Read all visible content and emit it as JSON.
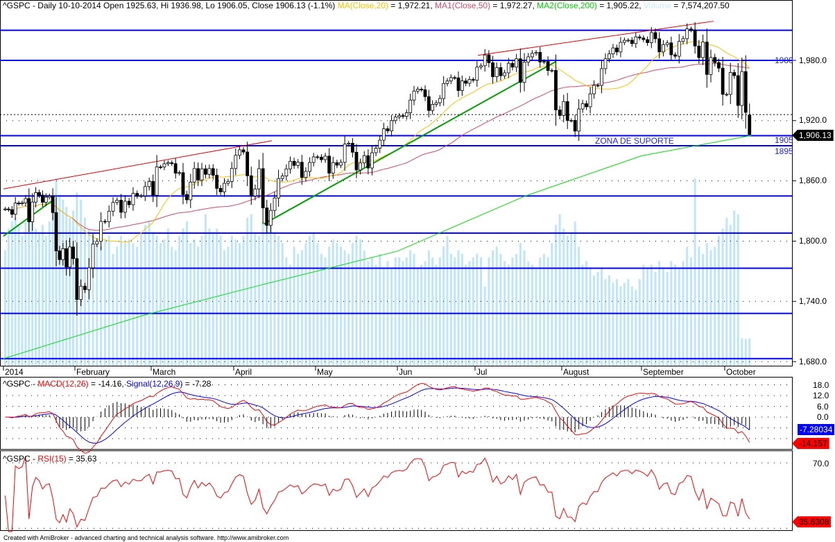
{
  "header": {
    "main_prefix": "^GSPC - Daily 10-10-2014 Open 1925.63, Hi 1936.98, Lo 1906.05, Close 1906.13 (-1.1%)",
    "ma20_label": "MA(Close,20)",
    "ma20_value": " = 1,972.21,",
    "ma50_label": "MA1(Close,50)",
    "ma50_value": " = 1,972.27,",
    "ma200_label": "MA2(Close,200)",
    "ma200_value": " = 1,905.22,",
    "volume_label": "Volume",
    "volume_value": " = 7,574,207.50",
    "macd_prefix": "^GSPC - ",
    "macd_label": "MACD(12,26)",
    "macd_value": " = -14.16, ",
    "signal_label": "Signal(12,26,9)",
    "signal_value": " = -7.28",
    "rsi_prefix": "^GSPC - ",
    "rsi_label": "RSI(15)",
    "rsi_value": " = 35.63"
  },
  "footer": "Created with AmiBroker - advanced charting and technical analysis software. http://www.amibroker.com",
  "annotations": {
    "zone_text": "ZONA DE SUPORTE",
    "l1980": "1980",
    "l1905": "1905",
    "l1895": "1895"
  },
  "axis": {
    "price_ticks": [
      "1,980.0",
      "1,920.0",
      "1,860.0",
      "1,800.0",
      "1,740.0",
      "1,680.0"
    ],
    "last_price": "1,906.13",
    "macd_ticks": [
      "18.0",
      "12.0",
      "6.0",
      "0.0"
    ],
    "signal_badge": "-7.28034",
    "macd_badge": "-14.157",
    "rsi_ticks": [
      "70.0"
    ],
    "rsi_badge": "35.6308"
  },
  "colors": {
    "ma20": "#ffc000",
    "ma50": "#d04a6a",
    "ma200": "#00e000",
    "volume": "#bfe6f8",
    "level": "#0000ff",
    "trend_red": "#e00000",
    "trend_green": "#00a000",
    "macd": "#ff0000",
    "signal": "#0000ff",
    "rsi": "#ff0000"
  },
  "chart_data": {
    "type": "candlestick",
    "symbol": "^GSPC",
    "interval": "Daily",
    "last_bar": {
      "date": "10-10-2014",
      "open": 1925.63,
      "high": 1936.98,
      "low": 1906.05,
      "close": 1906.13
    },
    "ylim": [
      1670,
      2030
    ],
    "months": [
      {
        "label": "2014",
        "closes": [
          1831.98,
          1831.37,
          1826.77,
          1837.88,
          1837.49,
          1838.13,
          1842.37,
          1819.2,
          1838.88,
          1848.38,
          1845.89,
          1838.7,
          1843.8,
          1844.86,
          1828.46,
          1790.29,
          1781.56,
          1792.5,
          1774.2,
          1794.19,
          1782.59
        ],
        "volumes": [
          32,
          38,
          40,
          41,
          39,
          36,
          40,
          44,
          42,
          38,
          37,
          39,
          36,
          40,
          45,
          52,
          47,
          46,
          44,
          41,
          43
        ]
      },
      {
        "label": "February",
        "closes": [
          1741.89,
          1755.2,
          1751.64,
          1773.43,
          1797.02,
          1799.84,
          1819.75,
          1819.26,
          1829.83,
          1838.63,
          1840.76,
          1828.75,
          1839.78,
          1836.25,
          1847.61,
          1845.12,
          1845.16,
          1854.29,
          1859.45
        ],
        "volumes": [
          48,
          46,
          41,
          38,
          36,
          34,
          33,
          35,
          36,
          31,
          33,
          36,
          34,
          35,
          34,
          33,
          37,
          39,
          40
        ]
      },
      {
        "label": "March",
        "closes": [
          1845.73,
          1873.91,
          1873.81,
          1877.03,
          1878.04,
          1877.17,
          1867.63,
          1868.2,
          1846.34,
          1841.13,
          1858.83,
          1872.25,
          1860.77,
          1872.01,
          1866.52,
          1872.29,
          1865.62,
          1852.56,
          1849.04,
          1857.62,
          1859.45,
          1872.34
        ],
        "volumes": [
          37,
          36,
          34,
          35,
          38,
          33,
          32,
          36,
          38,
          40,
          34,
          35,
          33,
          36,
          42,
          38,
          37,
          38,
          36,
          32,
          33,
          36
        ]
      },
      {
        "label": "April",
        "closes": [
          1885.52,
          1890.9,
          1888.77,
          1865.09,
          1845.04,
          1851.96,
          1872.18,
          1833.08,
          1815.69,
          1830.61,
          1842.98,
          1862.31,
          1864.85,
          1871.89,
          1879.55,
          1875.39,
          1878.61,
          1863.4,
          1869.43,
          1878.33,
          1883.95
        ],
        "volumes": [
          35,
          34,
          36,
          41,
          42,
          37,
          36,
          40,
          42,
          39,
          37,
          36,
          34,
          30,
          28,
          33,
          31,
          32,
          34,
          36,
          37
        ]
      },
      {
        "label": "May",
        "closes": [
          1883.68,
          1881.14,
          1884.66,
          1867.72,
          1878.21,
          1875.63,
          1878.48,
          1896.65,
          1897.45,
          1888.53,
          1870.85,
          1877.86,
          1885.08,
          1872.83,
          1888.03,
          1892.49,
          1900.53,
          1911.91,
          1909.78,
          1920.03,
          1923.57
        ],
        "volumes": [
          34,
          31,
          30,
          33,
          35,
          34,
          33,
          32,
          31,
          34,
          36,
          35,
          32,
          29,
          30,
          28,
          31,
          27,
          29,
          27,
          30
        ]
      },
      {
        "label": "Jun",
        "closes": [
          1924.97,
          1924.24,
          1927.88,
          1940.46,
          1949.44,
          1951.27,
          1950.79,
          1943.89,
          1930.11,
          1936.16,
          1937.78,
          1941.99,
          1956.98,
          1959.48,
          1962.87,
          1962.61,
          1949.98,
          1959.53,
          1957.22,
          1960.96,
          1960.23
        ],
        "volumes": [
          30,
          29,
          30,
          32,
          31,
          27,
          28,
          29,
          32,
          30,
          28,
          30,
          33,
          36,
          31,
          30,
          32,
          31,
          28,
          29,
          30
        ]
      },
      {
        "label": "Jul",
        "closes": [
          1973.32,
          1974.62,
          1985.44,
          1977.65,
          1963.71,
          1972.83,
          1964.68,
          1967.57,
          1977.1,
          1973.28,
          1981.57,
          1958.12,
          1978.22,
          1983.53,
          1987.01,
          1987.98,
          1978.34,
          1978.91,
          1969.95,
          1970.07,
          1930.67,
          1925.15
        ],
        "volumes": [
          31,
          30,
          22,
          30,
          32,
          33,
          31,
          29,
          28,
          30,
          31,
          34,
          32,
          29,
          28,
          27,
          30,
          31,
          30,
          34,
          39,
          42
        ]
      },
      {
        "label": "August",
        "closes": [
          1938.99,
          1920.21,
          1920.24,
          1909.57,
          1931.59,
          1936.92,
          1933.75,
          1946.72,
          1955.18,
          1955.06,
          1971.74,
          1981.6,
          1986.51,
          1992.37,
          1988.4,
          1997.92,
          2000.02,
          2000.12,
          1996.74,
          2003.37,
          2002.28
        ],
        "volumes": [
          38,
          36,
          37,
          40,
          33,
          28,
          29,
          27,
          25,
          26,
          27,
          24,
          25,
          23,
          24,
          22,
          23,
          24,
          22,
          21,
          24
        ]
      },
      {
        "label": "September",
        "closes": [
          2000.72,
          1997.65,
          2007.71,
          2001.54,
          1988.44,
          1995.69,
          1997.45,
          1985.54,
          1984.13,
          1998.98,
          2001.57,
          2011.36,
          2010.4,
          1994.29,
          1982.77,
          1998.3,
          1965.99,
          1982.85,
          1977.8,
          1972.29,
          1946.16
        ],
        "volumes": [
          28,
          27,
          28,
          26,
          29,
          27,
          26,
          29,
          28,
          27,
          29,
          33,
          30,
          52,
          33,
          31,
          34,
          32,
          33,
          36,
          38
        ]
      },
      {
        "label": "October",
        "closes": [
          1946.17,
          1967.9,
          1964.82,
          1935.1,
          1968.89,
          1928.21,
          1906.13
        ],
        "volumes": [
          41,
          39,
          43,
          42,
          7.6,
          7.4,
          7.57
        ]
      }
    ],
    "horizontal_levels": [
      2010,
      1980,
      1905,
      1895,
      1845,
      1808,
      1773,
      1728,
      1683
    ],
    "dashed_level": 1926,
    "ma200": [
      {
        "date": "2014-01-01",
        "value": 1683
      },
      {
        "date": "2014-02-26",
        "value": 1726
      },
      {
        "date": "2014-04-12",
        "value": 1757
      },
      {
        "date": "2014-06-01",
        "value": 1790
      },
      {
        "date": "2014-07-19",
        "value": 1845
      },
      {
        "date": "2014-09-01",
        "value": 1885
      },
      {
        "date": "2014-10-10",
        "value": 1905.22
      }
    ],
    "trendlines": [
      {
        "color": "trend_red",
        "from": {
          "date": "2014-01-01",
          "price": 1852
        },
        "to": {
          "date": "2014-04-15",
          "price": 1900
        }
      },
      {
        "color": "trend_red",
        "from": {
          "date": "2014-07-02",
          "price": 1985
        },
        "to": {
          "date": "2014-09-27",
          "price": 2019
        }
      },
      {
        "color": "trend_green",
        "from": {
          "date": "2014-01-01",
          "price": 1805
        },
        "to": {
          "date": "2014-01-22",
          "price": 1840
        }
      },
      {
        "color": "trend_green",
        "from": {
          "date": "2014-04-12",
          "price": 1817
        },
        "to": {
          "date": "2014-07-30",
          "price": 1979
        }
      }
    ],
    "indicators": {
      "ma_periods": [
        20,
        50
      ],
      "macd": [
        12,
        26,
        9
      ],
      "rsi": 15
    }
  }
}
